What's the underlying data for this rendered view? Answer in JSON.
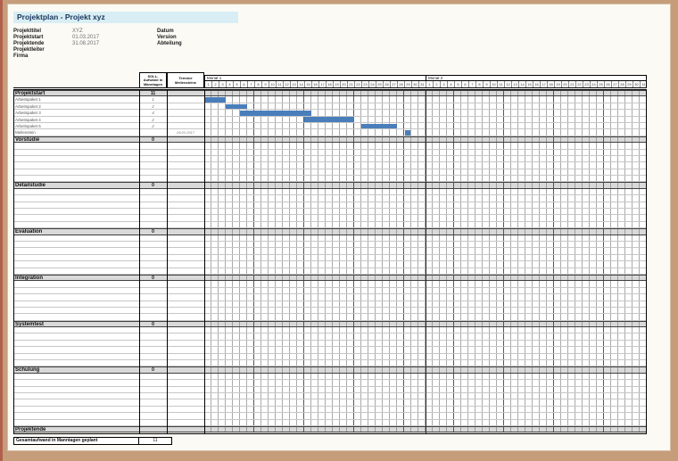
{
  "title": "Projektplan - Projekt xyz",
  "info": {
    "left": [
      {
        "label": "Projekttitel",
        "value": "XYZ"
      },
      {
        "label": "Projektstart",
        "value": "01.03.2017"
      },
      {
        "label": "Projektende",
        "value": "31.08.2017"
      },
      {
        "label": "Projektleiter",
        "value": ""
      },
      {
        "label": "Firma",
        "value": ""
      }
    ],
    "right": [
      {
        "label": "Datum",
        "value": ""
      },
      {
        "label": "Version",
        "value": ""
      },
      {
        "label": "Abteilung",
        "value": ""
      }
    ]
  },
  "gantt": {
    "col_headers": {
      "soll": "SOLL-Aufwand in Manntagen",
      "termine": "Termine Meilensteine"
    },
    "months": [
      {
        "label": "Monat 1",
        "days": 31
      },
      {
        "label": "Monat 2",
        "days": 31
      }
    ],
    "rows": [
      {
        "type": "section",
        "label": "Projektstart",
        "soll": "11",
        "termine": ""
      },
      {
        "type": "task",
        "label": "Arbeitspaket 1",
        "soll": "1",
        "termine": "",
        "bar": [
          1,
          3
        ]
      },
      {
        "type": "task",
        "label": "Arbeitspaket 2",
        "soll": "2",
        "termine": "",
        "bar": [
          4,
          6
        ]
      },
      {
        "type": "task",
        "label": "Arbeitspaket 3",
        "soll": "4",
        "termine": "",
        "bar": [
          6,
          15
        ]
      },
      {
        "type": "task",
        "label": "Arbeitspaket 4",
        "soll": "2",
        "termine": "",
        "bar": [
          15,
          21
        ]
      },
      {
        "type": "task",
        "label": "Arbeitspaket 5",
        "soll": "2",
        "termine": "",
        "bar": [
          23,
          27
        ]
      },
      {
        "type": "milestone",
        "label": "Meilenstein",
        "soll": "",
        "termine": "29.03.2017",
        "day": 29
      },
      {
        "type": "section",
        "label": "Vorstudie",
        "soll": "0",
        "termine": ""
      },
      {
        "type": "empty"
      },
      {
        "type": "empty"
      },
      {
        "type": "empty"
      },
      {
        "type": "empty"
      },
      {
        "type": "empty"
      },
      {
        "type": "empty"
      },
      {
        "type": "section",
        "label": "Detailstudie",
        "soll": "0",
        "termine": ""
      },
      {
        "type": "empty"
      },
      {
        "type": "empty"
      },
      {
        "type": "empty"
      },
      {
        "type": "empty"
      },
      {
        "type": "empty"
      },
      {
        "type": "empty"
      },
      {
        "type": "section",
        "label": "Evaluation",
        "soll": "0",
        "termine": ""
      },
      {
        "type": "empty"
      },
      {
        "type": "empty"
      },
      {
        "type": "empty"
      },
      {
        "type": "empty"
      },
      {
        "type": "empty"
      },
      {
        "type": "empty"
      },
      {
        "type": "section",
        "label": "Integration",
        "soll": "0",
        "termine": ""
      },
      {
        "type": "empty"
      },
      {
        "type": "empty"
      },
      {
        "type": "empty"
      },
      {
        "type": "empty"
      },
      {
        "type": "empty"
      },
      {
        "type": "empty"
      },
      {
        "type": "section",
        "label": "Systemtest",
        "soll": "0",
        "termine": ""
      },
      {
        "type": "empty"
      },
      {
        "type": "empty"
      },
      {
        "type": "empty"
      },
      {
        "type": "empty"
      },
      {
        "type": "empty"
      },
      {
        "type": "empty"
      },
      {
        "type": "section",
        "label": "Schulung",
        "soll": "0",
        "termine": ""
      },
      {
        "type": "empty"
      },
      {
        "type": "empty"
      },
      {
        "type": "empty"
      },
      {
        "type": "empty"
      },
      {
        "type": "empty"
      },
      {
        "type": "empty"
      },
      {
        "type": "empty"
      },
      {
        "type": "empty"
      },
      {
        "type": "section",
        "label": "Projektende",
        "soll": "",
        "termine": ""
      }
    ],
    "summary": {
      "label": "Gesamtaufwand in Manntagen geplant",
      "value": "11"
    }
  },
  "colors": {
    "title_bg": "#d9eef4",
    "title_text": "#17365d",
    "section_bg": "#d9d9d9",
    "bar": "#4a7ebb",
    "frame": "#c69d7b"
  }
}
